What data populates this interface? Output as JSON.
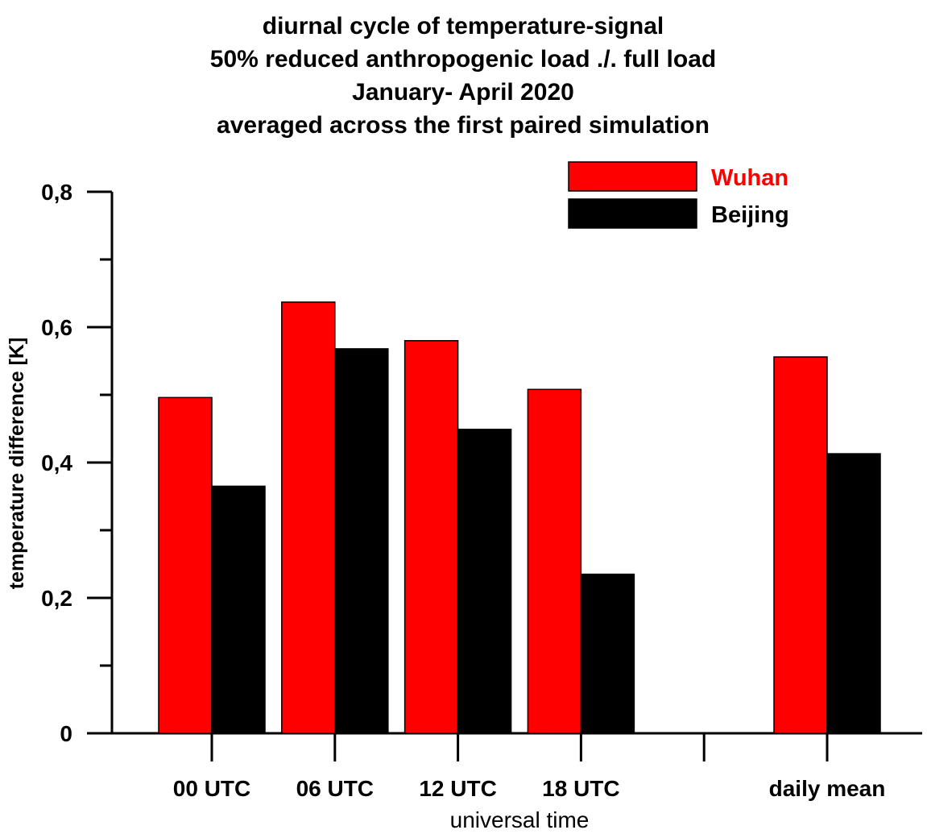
{
  "chart_data": {
    "type": "bar",
    "title": [
      "diurnal cycle of temperature-signal",
      "50% reduced anthropogenic load ./. full load",
      "January- April 2020",
      "averaged across the first paired simulation"
    ],
    "xlabel": "universal time",
    "ylabel": "temperature difference [K]",
    "ylim": [
      0,
      0.8
    ],
    "yticks": [
      {
        "v": 0,
        "label": "0"
      },
      {
        "v": 0.2,
        "label": "0,2"
      },
      {
        "v": 0.4,
        "label": "0,4"
      },
      {
        "v": 0.6,
        "label": "0,6"
      },
      {
        "v": 0.8,
        "label": "0,8"
      }
    ],
    "categories": [
      "00 UTC",
      "06 UTC",
      "12 UTC",
      "18 UTC",
      "",
      "daily mean"
    ],
    "series": [
      {
        "name": "Wuhan",
        "color": "#ff0000",
        "values": [
          0.496,
          0.637,
          0.58,
          0.508,
          null,
          0.556
        ]
      },
      {
        "name": "Beijing",
        "color": "#000000",
        "values": [
          0.365,
          0.568,
          0.449,
          0.235,
          null,
          0.413
        ]
      }
    ],
    "legend_position": "top-right",
    "grid": false
  }
}
